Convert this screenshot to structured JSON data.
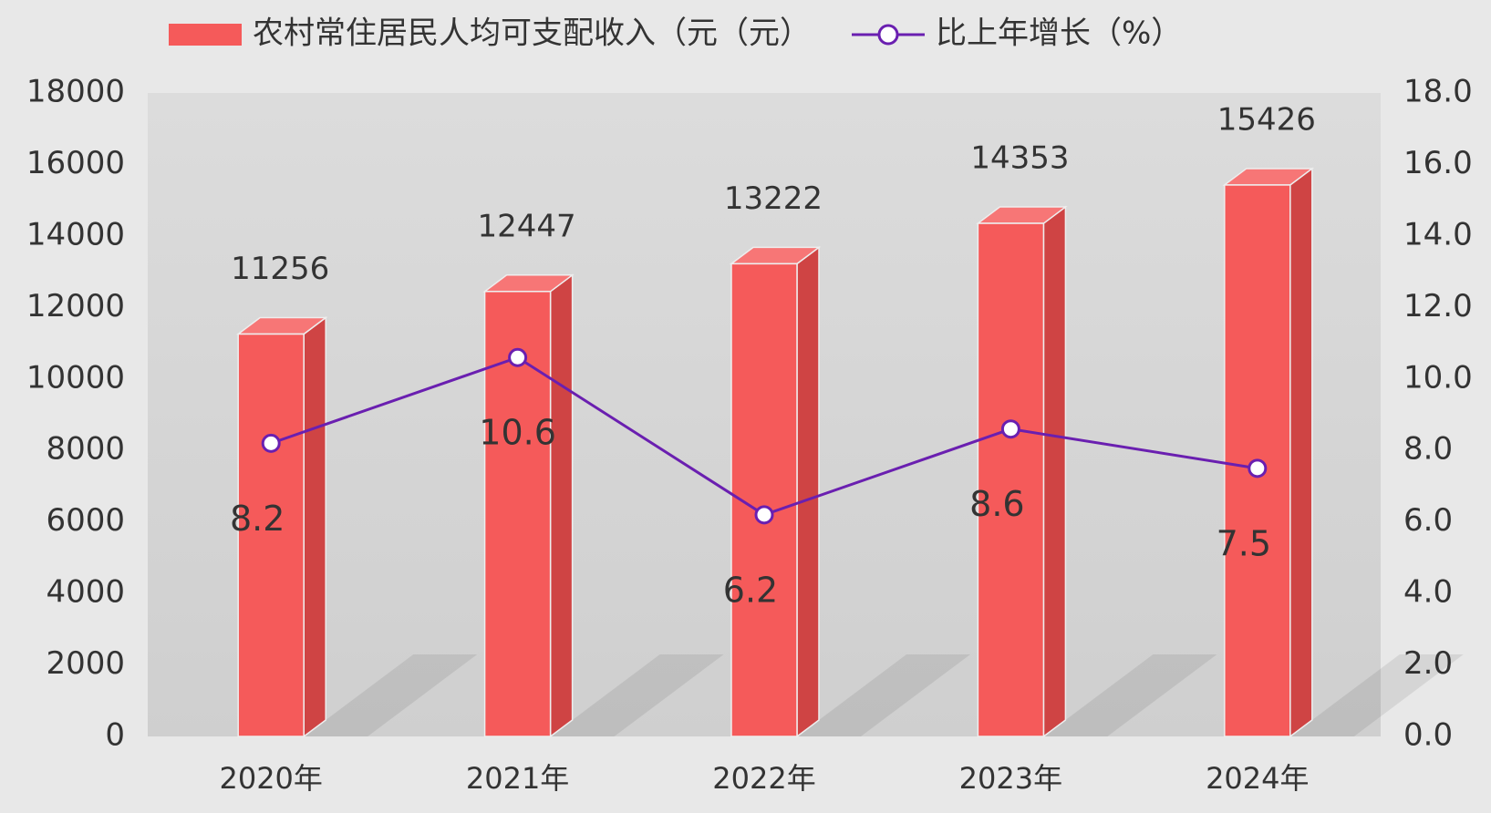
{
  "chart_data": {
    "type": "bar",
    "categories": [
      "2020年",
      "2021年",
      "2022年",
      "2023年",
      "2024年"
    ],
    "series": [
      {
        "name": "农村常住居民人均可支配收入（元（元）",
        "type": "bar",
        "color": "#f55a5a",
        "values": [
          11256,
          12447,
          13222,
          14353,
          15426
        ]
      },
      {
        "name": "比上年增长（%）",
        "type": "line",
        "axis": "y2",
        "color": "#6a1fb0",
        "values": [
          8.2,
          10.6,
          6.2,
          8.6,
          7.5
        ]
      }
    ],
    "ylim": [
      0,
      18000
    ],
    "yticks": [
      0,
      2000,
      4000,
      6000,
      8000,
      10000,
      12000,
      14000,
      16000,
      18000
    ],
    "y2lim": [
      0,
      18
    ],
    "y2ticks": [
      {
        "value": 0,
        "label": "0.0"
      },
      {
        "value": 2,
        "label": "2.0"
      },
      {
        "value": 4,
        "label": "4.0"
      },
      {
        "value": 6,
        "label": "6.0"
      },
      {
        "value": 8,
        "label": "8.0"
      },
      {
        "value": 10,
        "label": "10.0"
      },
      {
        "value": 12,
        "label": "12.0"
      },
      {
        "value": 14,
        "label": "14.0"
      },
      {
        "value": 16,
        "label": "16.0"
      },
      {
        "value": 18,
        "label": "18.0"
      }
    ],
    "legend": "top"
  }
}
